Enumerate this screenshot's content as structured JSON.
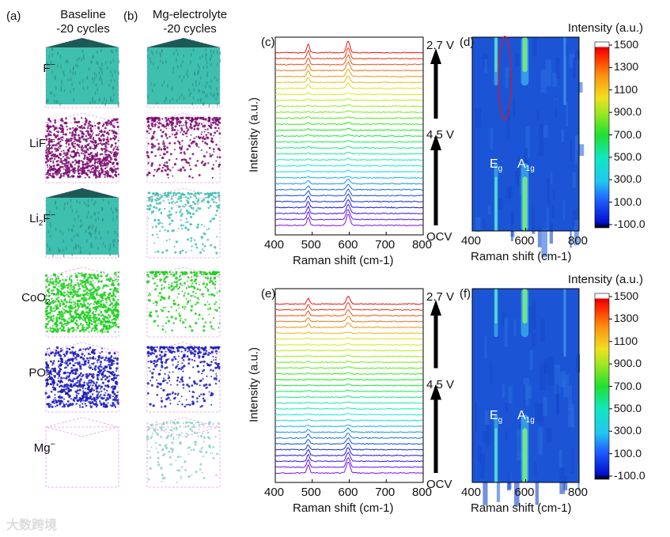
{
  "panels": {
    "a": "(a)",
    "b": "(b)",
    "c": "(c)",
    "d": "(d)",
    "e": "(e)",
    "f": "(f)"
  },
  "columns": {
    "a": "Baseline\n-20 cycles",
    "b": "Mg-electrolyte\n-20 cycles"
  },
  "rows": [
    {
      "main": "F",
      "sub": "",
      "sup": "−",
      "color": "#3fbfae",
      "solid": true,
      "solid_b": true,
      "density_a": 1,
      "density_b": 1
    },
    {
      "main": "LiF",
      "sub": "2",
      "sup": "−",
      "color": "#7a0a6e",
      "solid": false,
      "solid_b": false,
      "density_a": 0.9,
      "density_b": 0.45
    },
    {
      "main": "Li",
      "sub": "2",
      "post": "F",
      "sup": "−",
      "color": "#3fbfae",
      "solid": true,
      "solid_b": false,
      "density_a": 1,
      "density_b": 0.3
    },
    {
      "main": "CoO",
      "sub": "2",
      "sup": "−",
      "color": "#1fcf1f",
      "solid": false,
      "solid_b": false,
      "density_a": 1,
      "density_b": 0.35
    },
    {
      "main": "PO",
      "sub": "2",
      "sup": "−",
      "color": "#1a1ab8",
      "solid": false,
      "solid_b": false,
      "density_a": 0.8,
      "density_b": 0.4
    },
    {
      "main": "Mg",
      "sub": "",
      "sup": "−",
      "color": "#8fd0c8",
      "solid": false,
      "solid_b": false,
      "density_a": 0,
      "density_b": 0.2
    }
  ],
  "voltage_labels": {
    "top": "2.7 V",
    "mid": "4.5 V",
    "bottom": "OCV"
  },
  "peak_labels": {
    "eg": "E",
    "eg_sub": "g",
    "a1g": "A",
    "a1g_sub": "1g"
  },
  "chart_data": [
    {
      "type": "line",
      "panel": "c",
      "xlabel": "Raman shift (cm-1)",
      "ylabel": "Intensity (a.u.)",
      "xlim": [
        400,
        800
      ],
      "xticks": [
        "400",
        "500",
        "600",
        "700",
        "800"
      ],
      "n_spectra": 30,
      "peaks_cm1": [
        490,
        597
      ],
      "color_order": "violet (OCV, bottom) to red (2.7 V, top)"
    },
    {
      "type": "heatmap",
      "panel": "d",
      "xlabel": "Raman shift (cm-1)",
      "xlim": [
        400,
        800
      ],
      "xticks": [
        "400",
        "600",
        "800"
      ],
      "colorbar_title": "Intensity (a.u.)",
      "colorbar_ticks": [
        "1500",
        "1300",
        "1100",
        "900.0",
        "700.0",
        "500.0",
        "300.0",
        "100.0",
        "-100.0"
      ],
      "colorbar_range": [
        -100,
        1500
      ],
      "highlight": "red ellipse near 520 cm-1 upper region"
    },
    {
      "type": "line",
      "panel": "e",
      "xlabel": "Raman shift (cm-1)",
      "ylabel": "Intensity (a.u.)",
      "xlim": [
        400,
        800
      ],
      "xticks": [
        "400",
        "500",
        "600",
        "700",
        "800"
      ],
      "n_spectra": 30,
      "peaks_cm1": [
        490,
        597
      ]
    },
    {
      "type": "heatmap",
      "panel": "f",
      "xlabel": "Raman shift (cm-1)",
      "xlim": [
        400,
        800
      ],
      "xticks": [
        "400",
        "600",
        "800"
      ],
      "colorbar_title": "Intensity (a.u.)",
      "colorbar_ticks": [
        "1500",
        "1300",
        "1100",
        "900.0",
        "700.0",
        "500.0",
        "300.0",
        "100.0",
        "-100.0"
      ],
      "colorbar_range": [
        -100,
        1500
      ]
    }
  ],
  "watermark": "大数跨境"
}
